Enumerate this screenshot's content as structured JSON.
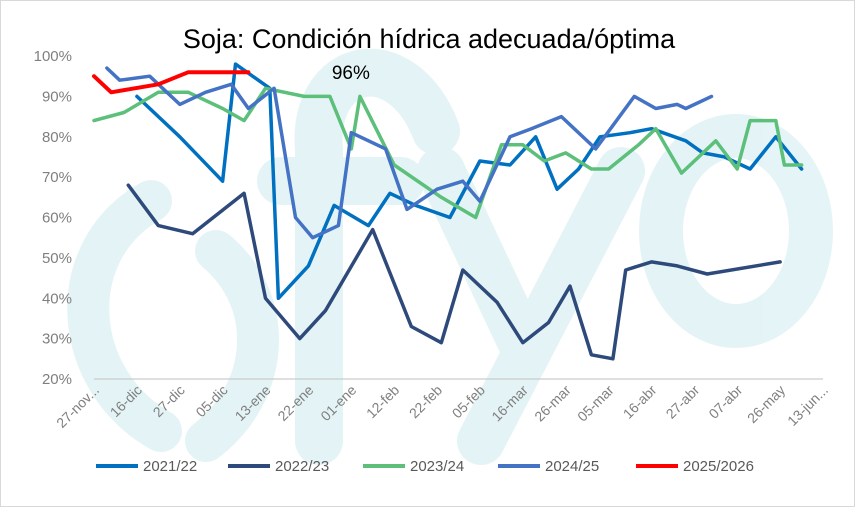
{
  "watermark": "()fyo",
  "chart_data": {
    "type": "line",
    "title": "Soja: Condición hídrica adecuada/óptima",
    "xlabel": "",
    "ylabel": "",
    "ylim": [
      20,
      100
    ],
    "yticks": [
      "20%",
      "30%",
      "40%",
      "50%",
      "60%",
      "70%",
      "80%",
      "90%",
      "100%"
    ],
    "grid": false,
    "legend_position": "bottom",
    "categories": [
      "27-nov...",
      "16-dic",
      "27-dic",
      "05-dic",
      "13-ene",
      "22-ene",
      "01-ene",
      "12-feb",
      "22-feb",
      "05-feb",
      "16-mar",
      "26-mar",
      "05-mar",
      "16-abr",
      "27-abr",
      "07-abr",
      "26-may",
      "13-jun..."
    ],
    "annotation": {
      "text": "96%",
      "series": "2025/2026",
      "x": 5.5,
      "y": 96
    },
    "series": [
      {
        "name": "2021/22",
        "color": "#0070C0",
        "points": [
          [
            1,
            90
          ],
          [
            2,
            80
          ],
          [
            3,
            69
          ],
          [
            3.3,
            98
          ],
          [
            4.1,
            92
          ],
          [
            4.3,
            40
          ],
          [
            5,
            48
          ],
          [
            5.6,
            63
          ],
          [
            6.4,
            58
          ],
          [
            6.9,
            66
          ],
          [
            7.5,
            63
          ],
          [
            8.3,
            60
          ],
          [
            9,
            74
          ],
          [
            9.7,
            73
          ],
          [
            10.3,
            80
          ],
          [
            10.8,
            67
          ],
          [
            11.3,
            72
          ],
          [
            11.8,
            80
          ],
          [
            12.5,
            81
          ],
          [
            13,
            82
          ],
          [
            13.8,
            79
          ],
          [
            14.2,
            76
          ],
          [
            14.7,
            75
          ],
          [
            15.3,
            72
          ],
          [
            15.9,
            80
          ],
          [
            16.5,
            72
          ]
        ]
      },
      {
        "name": "2022/23",
        "color": "#2E4A7A",
        "points": [
          [
            0.8,
            68
          ],
          [
            1.5,
            58
          ],
          [
            2.3,
            56
          ],
          [
            3.5,
            66
          ],
          [
            4,
            40
          ],
          [
            4.8,
            30
          ],
          [
            5.4,
            37
          ],
          [
            6.5,
            57
          ],
          [
            7.4,
            33
          ],
          [
            8.1,
            29
          ],
          [
            8.6,
            47
          ],
          [
            9.4,
            39
          ],
          [
            10,
            29
          ],
          [
            10.6,
            34
          ],
          [
            11.1,
            43
          ],
          [
            11.6,
            26
          ],
          [
            12.1,
            25
          ],
          [
            12.4,
            47
          ],
          [
            13,
            49
          ],
          [
            13.6,
            48
          ],
          [
            14.3,
            46
          ],
          [
            16,
            49
          ]
        ]
      },
      {
        "name": "2023/24",
        "color": "#5CBF7A",
        "points": [
          [
            0,
            84
          ],
          [
            0.7,
            86
          ],
          [
            1.5,
            91
          ],
          [
            2.2,
            91
          ],
          [
            3,
            87
          ],
          [
            3.5,
            84
          ],
          [
            4,
            92
          ],
          [
            4.9,
            90
          ],
          [
            5.5,
            90
          ],
          [
            6,
            77
          ],
          [
            6.2,
            90
          ],
          [
            7,
            73
          ],
          [
            8.1,
            65
          ],
          [
            8.9,
            60
          ],
          [
            9.5,
            78
          ],
          [
            10,
            78
          ],
          [
            10.5,
            74
          ],
          [
            11,
            76
          ],
          [
            11.6,
            72
          ],
          [
            12,
            72
          ],
          [
            12.7,
            78
          ],
          [
            13.1,
            82
          ],
          [
            13.7,
            71
          ],
          [
            14.5,
            79
          ],
          [
            15,
            72
          ],
          [
            15.3,
            84
          ],
          [
            15.9,
            84
          ],
          [
            16.1,
            73
          ],
          [
            16.5,
            73
          ]
        ]
      },
      {
        "name": "2024/25",
        "color": "#4472C4",
        "points": [
          [
            0.3,
            97
          ],
          [
            0.6,
            94
          ],
          [
            1.3,
            95
          ],
          [
            2,
            88
          ],
          [
            2.6,
            91
          ],
          [
            3.2,
            93
          ],
          [
            3.6,
            87
          ],
          [
            4.2,
            92
          ],
          [
            4.7,
            60
          ],
          [
            5.1,
            55
          ],
          [
            5.7,
            58
          ],
          [
            6,
            81
          ],
          [
            6.8,
            77
          ],
          [
            7.3,
            62
          ],
          [
            8,
            67
          ],
          [
            8.6,
            69
          ],
          [
            9,
            64
          ],
          [
            9.7,
            80
          ],
          [
            10.2,
            82
          ],
          [
            10.9,
            85
          ],
          [
            11.7,
            77
          ],
          [
            12.6,
            90
          ],
          [
            13.1,
            87
          ],
          [
            13.6,
            88
          ],
          [
            13.8,
            87
          ],
          [
            14.4,
            90
          ]
        ]
      },
      {
        "name": "2025/2026",
        "color": "#FF0000",
        "points": [
          [
            0,
            95
          ],
          [
            0.4,
            91
          ],
          [
            1.5,
            93
          ],
          [
            2.2,
            96
          ],
          [
            3.2,
            96
          ],
          [
            3.6,
            96
          ]
        ]
      }
    ]
  }
}
